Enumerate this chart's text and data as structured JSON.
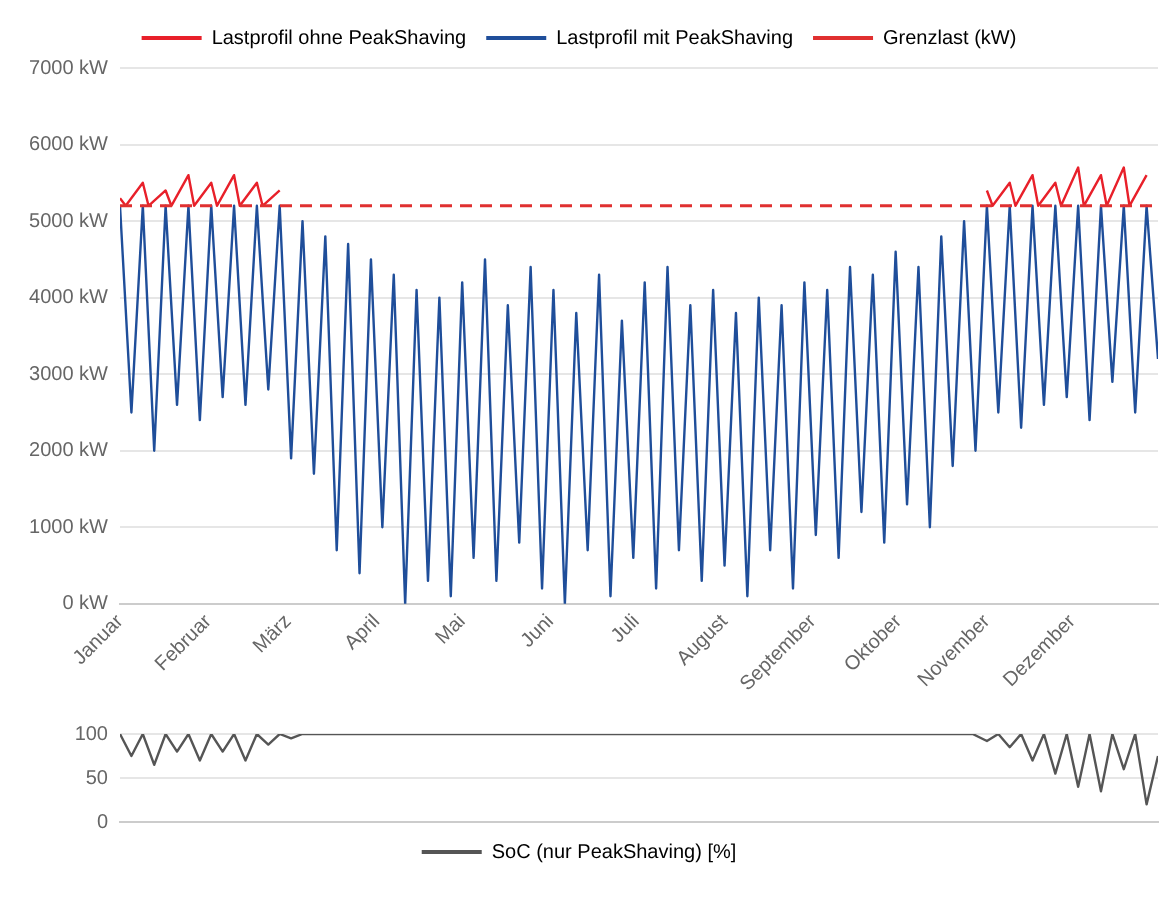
{
  "chart_data": [
    {
      "type": "line",
      "legend": "top",
      "grid": "y",
      "marker": "none",
      "line_style": "solid",
      "xlim": [
        "--01-01",
        "--12-31"
      ],
      "xticks": [
        {
          "value": "--01-01",
          "label": "Januar"
        },
        {
          "value": "--02-01",
          "label": "Februar"
        },
        {
          "value": "--03-01",
          "label": "März"
        },
        {
          "value": "--04-01",
          "label": "April"
        },
        {
          "value": "--05-01",
          "label": "Mai"
        },
        {
          "value": "--06-01",
          "label": "Juni"
        },
        {
          "value": "--07-01",
          "label": "Juli"
        },
        {
          "value": "--08-01",
          "label": "August"
        },
        {
          "value": "--09-01",
          "label": "September"
        },
        {
          "value": "--10-01",
          "label": "Oktober"
        },
        {
          "value": "--11-01",
          "label": "November"
        },
        {
          "value": "--12-01",
          "label": "Dezember"
        }
      ],
      "ylim": [
        0,
        7000
      ],
      "yticks": [
        {
          "value": 0,
          "label": "0 kW"
        },
        {
          "value": 1000,
          "label": "1000 kW"
        },
        {
          "value": 2000,
          "label": "2000 kW"
        },
        {
          "value": 3000,
          "label": "3000 kW"
        },
        {
          "value": 4000,
          "label": "4000 kW"
        },
        {
          "value": 5000,
          "label": "5000 kW"
        },
        {
          "value": 6000,
          "label": "6000 kW"
        },
        {
          "value": 7000,
          "label": "7000 kW"
        }
      ],
      "ref_lines": [
        {
          "axis": "y",
          "value": 5200,
          "label": "Grenzlast (kW)",
          "color": "#e03030",
          "line_style": "dashed"
        }
      ],
      "series": [
        {
          "name": "Lastprofil ohne PeakShaving",
          "color": "#e8202a",
          "x": [
            "--01-01",
            "--01-03",
            "--01-09",
            "--01-11",
            "--01-17",
            "--01-19",
            "--01-25",
            "--01-27",
            "--02-02",
            "--02-04",
            "--02-10",
            "--02-12",
            "--02-18",
            "--02-20",
            "--02-26",
            "--07-19",
            "--11-01",
            "--11-03",
            "--11-09",
            "--11-11",
            "--11-17",
            "--11-19",
            "--11-25",
            "--11-27",
            "--12-03",
            "--12-05",
            "--12-11",
            "--12-13",
            "--12-19",
            "--12-21",
            "--12-27"
          ],
          "values": [
            5300,
            5200,
            5500,
            5200,
            5400,
            5200,
            5600,
            5200,
            5500,
            5200,
            5600,
            5200,
            5500,
            5200,
            5400,
            null,
            5400,
            5200,
            5500,
            5200,
            5600,
            5200,
            5500,
            5200,
            5700,
            5200,
            5600,
            5200,
            5700,
            5200,
            5600
          ]
        },
        {
          "name": "Lastprofil mit PeakShaving",
          "color": "#1f4e9a",
          "x": [
            "--01-01",
            "--01-05",
            "--01-09",
            "--01-13",
            "--01-17",
            "--01-21",
            "--01-25",
            "--01-29",
            "--02-02",
            "--02-06",
            "--02-10",
            "--02-14",
            "--02-18",
            "--02-22",
            "--02-26",
            "--03-02",
            "--03-06",
            "--03-10",
            "--03-14",
            "--03-18",
            "--03-22",
            "--03-26",
            "--03-30",
            "--04-03",
            "--04-07",
            "--04-11",
            "--04-15",
            "--04-19",
            "--04-23",
            "--04-27",
            "--05-01",
            "--05-05",
            "--05-09",
            "--05-13",
            "--05-17",
            "--05-21",
            "--05-25",
            "--05-29",
            "--06-02",
            "--06-06",
            "--06-10",
            "--06-14",
            "--06-18",
            "--06-22",
            "--06-26",
            "--06-30",
            "--07-04",
            "--07-08",
            "--07-12",
            "--07-16",
            "--07-20",
            "--07-24",
            "--07-28",
            "--08-01",
            "--08-05",
            "--08-09",
            "--08-13",
            "--08-17",
            "--08-21",
            "--08-25",
            "--08-29",
            "--09-02",
            "--09-06",
            "--09-10",
            "--09-14",
            "--09-18",
            "--09-22",
            "--09-26",
            "--09-30",
            "--10-04",
            "--10-08",
            "--10-12",
            "--10-16",
            "--10-20",
            "--10-24",
            "--10-28",
            "--11-01",
            "--11-05",
            "--11-09",
            "--11-13",
            "--11-17",
            "--11-21",
            "--11-25",
            "--11-29",
            "--12-03",
            "--12-07",
            "--12-11",
            "--12-15",
            "--12-19",
            "--12-23",
            "--12-27",
            "--12-31"
          ],
          "values": [
            5200,
            2500,
            5200,
            2000,
            5200,
            2600,
            5200,
            2400,
            5200,
            2700,
            5200,
            2600,
            5200,
            2800,
            5200,
            1900,
            5000,
            1700,
            4800,
            700,
            4700,
            400,
            4500,
            1000,
            4300,
            0,
            4100,
            300,
            4000,
            100,
            4200,
            600,
            4500,
            300,
            3900,
            800,
            4400,
            200,
            4100,
            0,
            3800,
            700,
            4300,
            100,
            3700,
            600,
            4200,
            200,
            4400,
            700,
            3900,
            300,
            4100,
            500,
            3800,
            100,
            4000,
            700,
            3900,
            200,
            4200,
            900,
            4100,
            600,
            4400,
            1200,
            4300,
            800,
            4600,
            1300,
            4400,
            1000,
            4800,
            1800,
            5000,
            2000,
            5200,
            2500,
            5200,
            2300,
            5200,
            2600,
            5200,
            2700,
            5200,
            2400,
            5200,
            2900,
            5200,
            2500,
            5200,
            3200
          ]
        }
      ]
    },
    {
      "type": "line",
      "legend": "bottom",
      "grid": "y",
      "marker": "none",
      "line_style": "solid",
      "tick_labels": "y",
      "xlim": [
        "--01-01",
        "--12-31"
      ],
      "ylim": [
        0,
        100
      ],
      "yticks": [
        0,
        50,
        100
      ],
      "series": [
        {
          "name": "SoC (nur PeakShaving) [%]",
          "color": "#555555",
          "x": [
            "--01-01",
            "--01-05",
            "--01-09",
            "--01-13",
            "--01-17",
            "--01-21",
            "--01-25",
            "--01-29",
            "--02-02",
            "--02-06",
            "--02-10",
            "--02-14",
            "--02-18",
            "--02-22",
            "--02-26",
            "--03-02",
            "--03-06",
            "--10-27",
            "--11-01",
            "--11-05",
            "--11-09",
            "--11-13",
            "--11-17",
            "--11-21",
            "--11-25",
            "--11-29",
            "--12-03",
            "--12-07",
            "--12-11",
            "--12-15",
            "--12-19",
            "--12-23",
            "--12-27",
            "--12-31"
          ],
          "values": [
            100,
            75,
            100,
            65,
            100,
            80,
            100,
            70,
            100,
            80,
            100,
            70,
            100,
            88,
            100,
            95,
            100,
            100,
            92,
            100,
            85,
            100,
            70,
            100,
            55,
            100,
            40,
            100,
            35,
            100,
            60,
            100,
            20,
            75
          ]
        }
      ]
    }
  ]
}
